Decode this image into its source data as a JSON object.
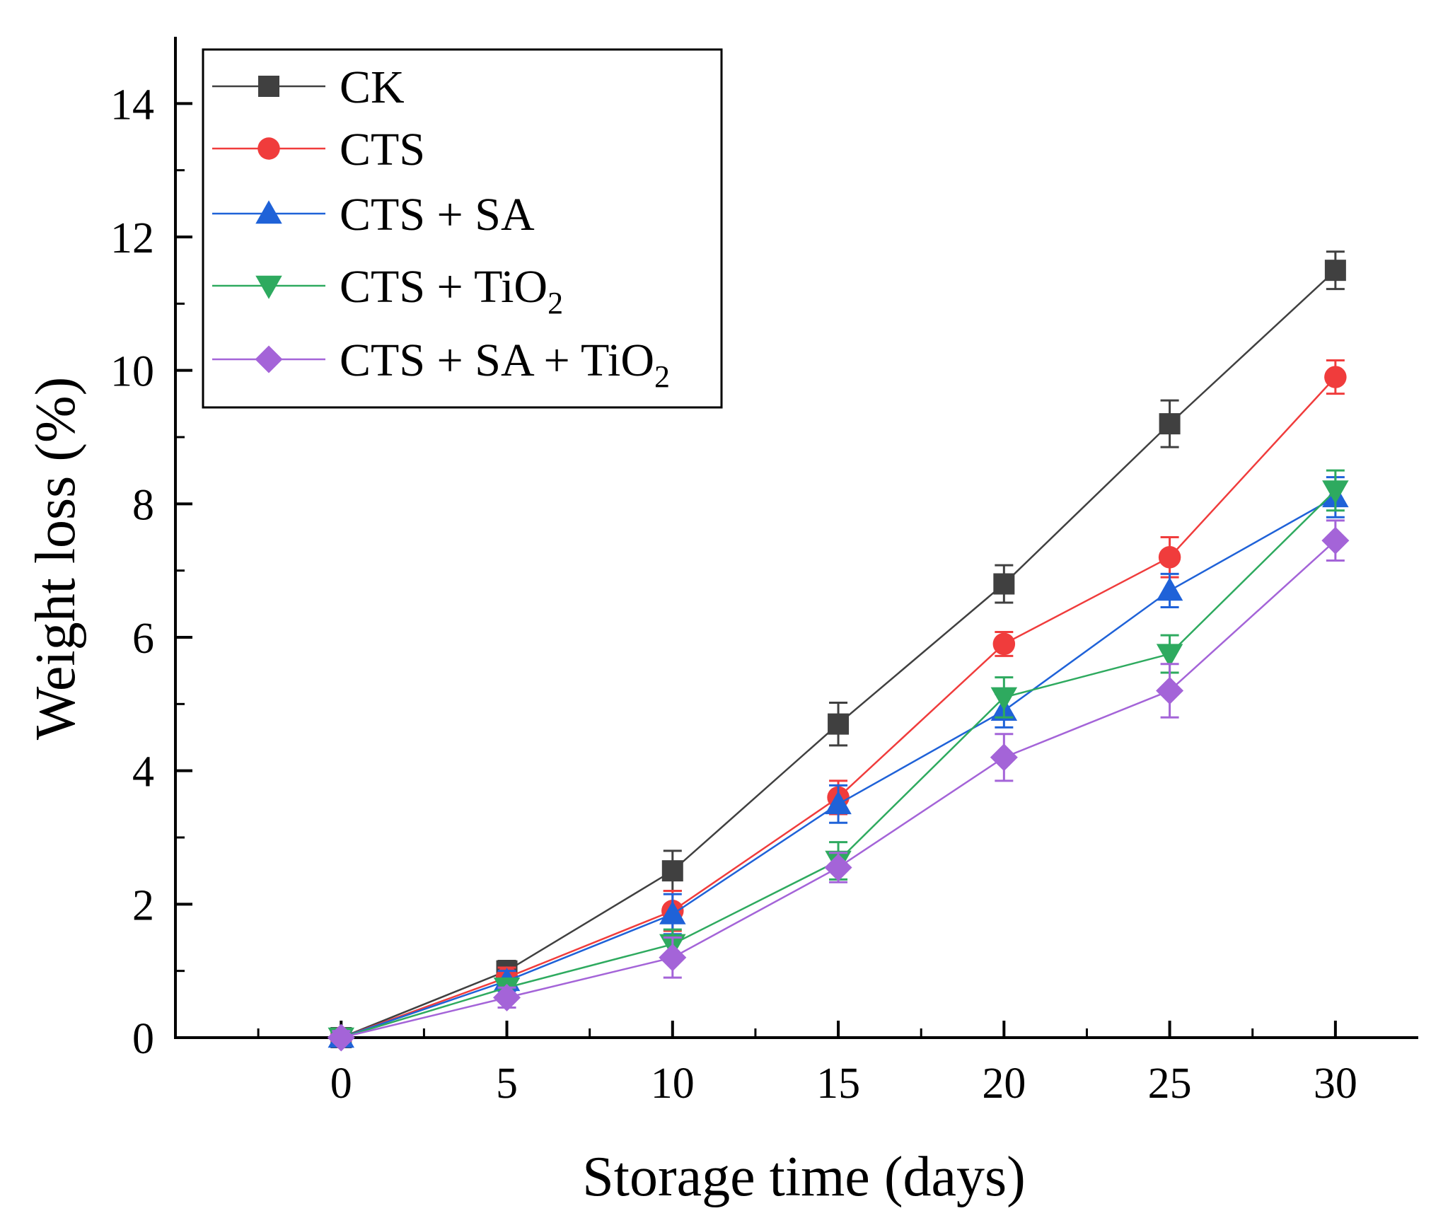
{
  "chart_data": {
    "type": "line",
    "title": "",
    "xlabel": "Storage time (days)",
    "ylabel": "Weight loss (%)",
    "xlim": [
      -5,
      32.5
    ],
    "ylim": [
      0,
      15
    ],
    "x_ticks": [
      0,
      5,
      10,
      15,
      20,
      25,
      30
    ],
    "y_ticks": [
      0,
      2,
      4,
      6,
      8,
      10,
      12,
      14
    ],
    "x_tick_labels": [
      "0",
      "5",
      "10",
      "15",
      "20",
      "25",
      "30"
    ],
    "y_tick_labels": [
      "0",
      "2",
      "4",
      "6",
      "8",
      "10",
      "12",
      "14"
    ],
    "grid": false,
    "legend_position": "top-left",
    "x": [
      0,
      5,
      10,
      15,
      20,
      25,
      30
    ],
    "series": [
      {
        "name": "CK",
        "label_main": "CK",
        "label_sub": "",
        "label_tail": "",
        "color": "#404040",
        "marker": "square",
        "values": [
          0,
          1.0,
          2.5,
          4.7,
          6.8,
          9.2,
          11.5
        ],
        "errors": [
          0.1,
          0.15,
          0.3,
          0.32,
          0.28,
          0.35,
          0.28
        ]
      },
      {
        "name": "CTS",
        "label_main": "CTS",
        "label_sub": "",
        "label_tail": "",
        "color": "#f03c3c",
        "marker": "circle",
        "values": [
          0,
          0.9,
          1.9,
          3.6,
          5.9,
          7.2,
          9.9
        ],
        "errors": [
          0.1,
          0.15,
          0.3,
          0.25,
          0.18,
          0.3,
          0.25
        ]
      },
      {
        "name": "CTS + SA",
        "label_main": "CTS + SA",
        "label_sub": "",
        "label_tail": "",
        "color": "#1f62d8",
        "marker": "triangle-up",
        "values": [
          0,
          0.85,
          1.85,
          3.5,
          4.9,
          6.7,
          8.1
        ],
        "errors": [
          0.1,
          0.15,
          0.3,
          0.28,
          0.25,
          0.25,
          0.3
        ]
      },
      {
        "name": "CTS + TiO2",
        "label_main": "CTS + TiO",
        "label_sub": "2",
        "label_tail": "",
        "color": "#2eaa5f",
        "marker": "triangle-down",
        "values": [
          0,
          0.75,
          1.4,
          2.65,
          5.1,
          5.75,
          8.2
        ],
        "errors": [
          0.1,
          0.12,
          0.22,
          0.28,
          0.3,
          0.28,
          0.3
        ]
      },
      {
        "name": "CTS + SA + TiO2",
        "label_main": "CTS + SA + TiO",
        "label_sub": "2",
        "label_tail": "",
        "color": "#a464d8",
        "marker": "diamond",
        "values": [
          0,
          0.6,
          1.2,
          2.55,
          4.2,
          5.2,
          7.45
        ],
        "errors": [
          0.1,
          0.15,
          0.3,
          0.22,
          0.35,
          0.4,
          0.3
        ]
      }
    ]
  }
}
